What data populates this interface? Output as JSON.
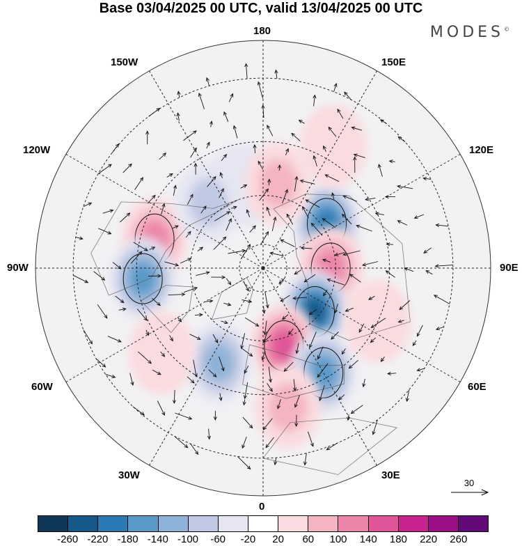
{
  "title": "Base 03/04/2025 00 UTC, valid 13/04/2025 00 UTC",
  "brand": "MODES",
  "brand_mark": "©",
  "map": {
    "projection": "north-polar-stereographic",
    "longitude_labels": {
      "top": "180",
      "bottom": "0",
      "left": "90W",
      "right": "90E",
      "upper_left_1": "150W",
      "upper_left_2": "120W",
      "upper_right_1": "150E",
      "upper_right_2": "120E",
      "lower_left_1": "60W",
      "lower_left_2": "30W",
      "lower_right_1": "60E",
      "lower_right_2": "30E"
    },
    "reference_vector_label": "30",
    "anomaly_centers": [
      {
        "lon": -105,
        "lat": 45,
        "value": 140
      },
      {
        "lon": -85,
        "lat": 42,
        "value": -160
      },
      {
        "lon": 125,
        "lat": 58,
        "value": -200
      },
      {
        "lon": 90,
        "lat": 62,
        "value": 150
      },
      {
        "lon": 50,
        "lat": 62,
        "value": -240
      },
      {
        "lon": 15,
        "lat": 57,
        "value": 160
      },
      {
        "lon": 30,
        "lat": 42,
        "value": -180
      },
      {
        "lon": 10,
        "lat": 35,
        "value": 100
      },
      {
        "lon": -25,
        "lat": 48,
        "value": -120
      },
      {
        "lon": -50,
        "lat": 38,
        "value": 60
      },
      {
        "lon": 65,
        "lat": 40,
        "value": 60
      },
      {
        "lon": -165,
        "lat": 55,
        "value": -60
      },
      {
        "lon": 170,
        "lat": 55,
        "value": 80
      },
      {
        "lon": -140,
        "lat": 55,
        "value": -80
      },
      {
        "lon": 150,
        "lat": 35,
        "value": 60
      }
    ]
  },
  "colorbar": {
    "colors": [
      "#0e3758",
      "#14598a",
      "#2c7ab3",
      "#5a9ac8",
      "#8fb2d8",
      "#c0c9e3",
      "#e6e6f3",
      "#ffffff",
      "#fadbdf",
      "#f4b4c2",
      "#ec85a9",
      "#e05598",
      "#c8238c",
      "#9b0f86",
      "#640a78"
    ],
    "tick_labels": [
      "-260",
      "-220",
      "-180",
      "-140",
      "-100",
      "-60",
      "-20",
      "20",
      "60",
      "100",
      "140",
      "180",
      "220",
      "260"
    ]
  }
}
